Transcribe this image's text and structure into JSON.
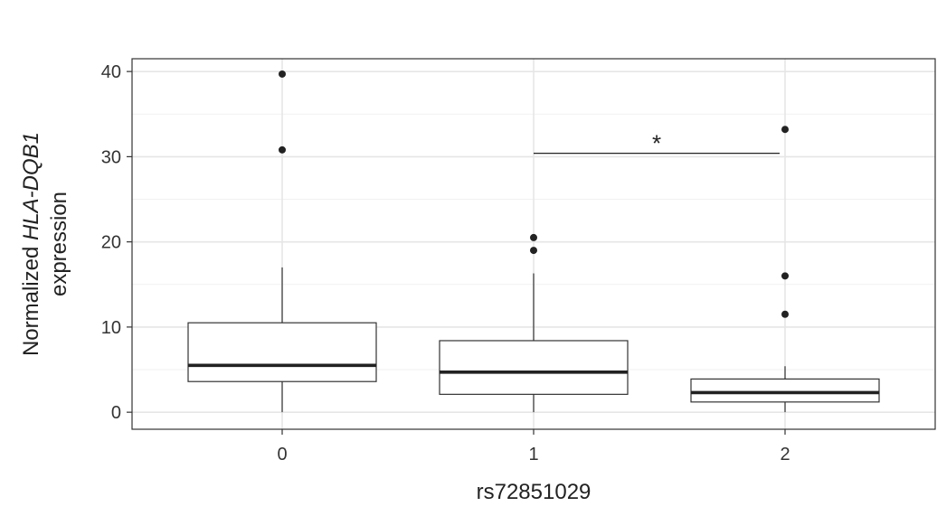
{
  "chart_data": {
    "type": "boxplot",
    "xlabel": "rs72851029",
    "ylabel": {
      "prefix": "Normalized ",
      "gene": "HLA-DQB1",
      "suffix": "expression"
    },
    "categories": [
      "0",
      "1",
      "2"
    ],
    "ylim": [
      -2,
      41.5
    ],
    "yticks": [
      0,
      10,
      20,
      30,
      40
    ],
    "grid": true,
    "boxes": [
      {
        "category": "0",
        "whisker_low": 0.0,
        "q1": 3.6,
        "median": 5.5,
        "q3": 10.5,
        "whisker_high": 17.0,
        "outliers": [
          39.7,
          30.8
        ]
      },
      {
        "category": "1",
        "whisker_low": 0.0,
        "q1": 2.1,
        "median": 4.7,
        "q3": 8.4,
        "whisker_high": 16.3,
        "outliers": [
          20.5,
          19.0
        ]
      },
      {
        "category": "2",
        "whisker_low": 0.0,
        "q1": 1.2,
        "median": 2.3,
        "q3": 3.9,
        "whisker_high": 5.4,
        "outliers": [
          33.2,
          16.0,
          11.5
        ]
      }
    ],
    "significance": [
      {
        "from": "1",
        "to": "2",
        "y": 30.4,
        "label": "*"
      }
    ]
  }
}
